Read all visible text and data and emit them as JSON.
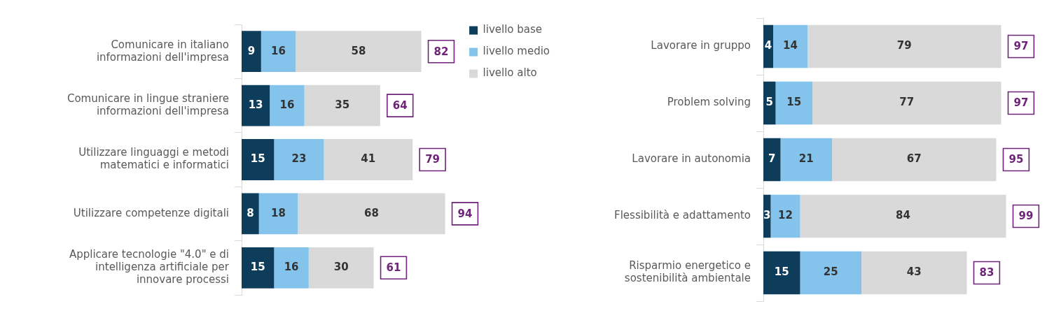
{
  "chart_data": [
    {
      "type": "bar",
      "orientation": "horizontal",
      "stacked": true,
      "data_labels": true,
      "legend": "right",
      "categories": [
        "Comunicare in italiano informazioni dell'impresa",
        "Comunicare in lingue straniere informazioni dell'impresa",
        "Utilizzare linguaggi e metodi matematici e informatici",
        "Utilizzare competenze digitali",
        "Applicare tecnologie \"4.0\" e di intelligenza artificiale per innovare processi"
      ],
      "series": [
        {
          "name": "livello base",
          "color": "#0e3d5c",
          "values": [
            9,
            13,
            15,
            8,
            15
          ]
        },
        {
          "name": "livello medio",
          "color": "#83c3ec",
          "values": [
            16,
            16,
            23,
            18,
            16
          ]
        },
        {
          "name": "livello alto",
          "color": "#d9d9d9",
          "values": [
            58,
            35,
            41,
            68,
            30
          ]
        }
      ],
      "totals": [
        "82",
        "64",
        "79",
        "94",
        "61"
      ]
    },
    {
      "type": "bar",
      "orientation": "horizontal",
      "stacked": true,
      "data_labels": true,
      "categories": [
        "Lavorare in gruppo",
        "Problem solving",
        "Lavorare in autonomia",
        "Flessibilità e adattamento",
        "Risparmio energetico e sostenibilità ambientale"
      ],
      "series": [
        {
          "color": "#0e3d5c",
          "values": [
            4,
            5,
            7,
            3,
            15
          ]
        },
        {
          "color": "#83c3ec",
          "values": [
            14,
            15,
            21,
            12,
            25
          ]
        },
        {
          "color": "#d9d9d9",
          "values": [
            79,
            77,
            67,
            84,
            43
          ]
        }
      ],
      "totals": [
        "97",
        "97",
        "95",
        "99",
        "83"
      ]
    }
  ]
}
